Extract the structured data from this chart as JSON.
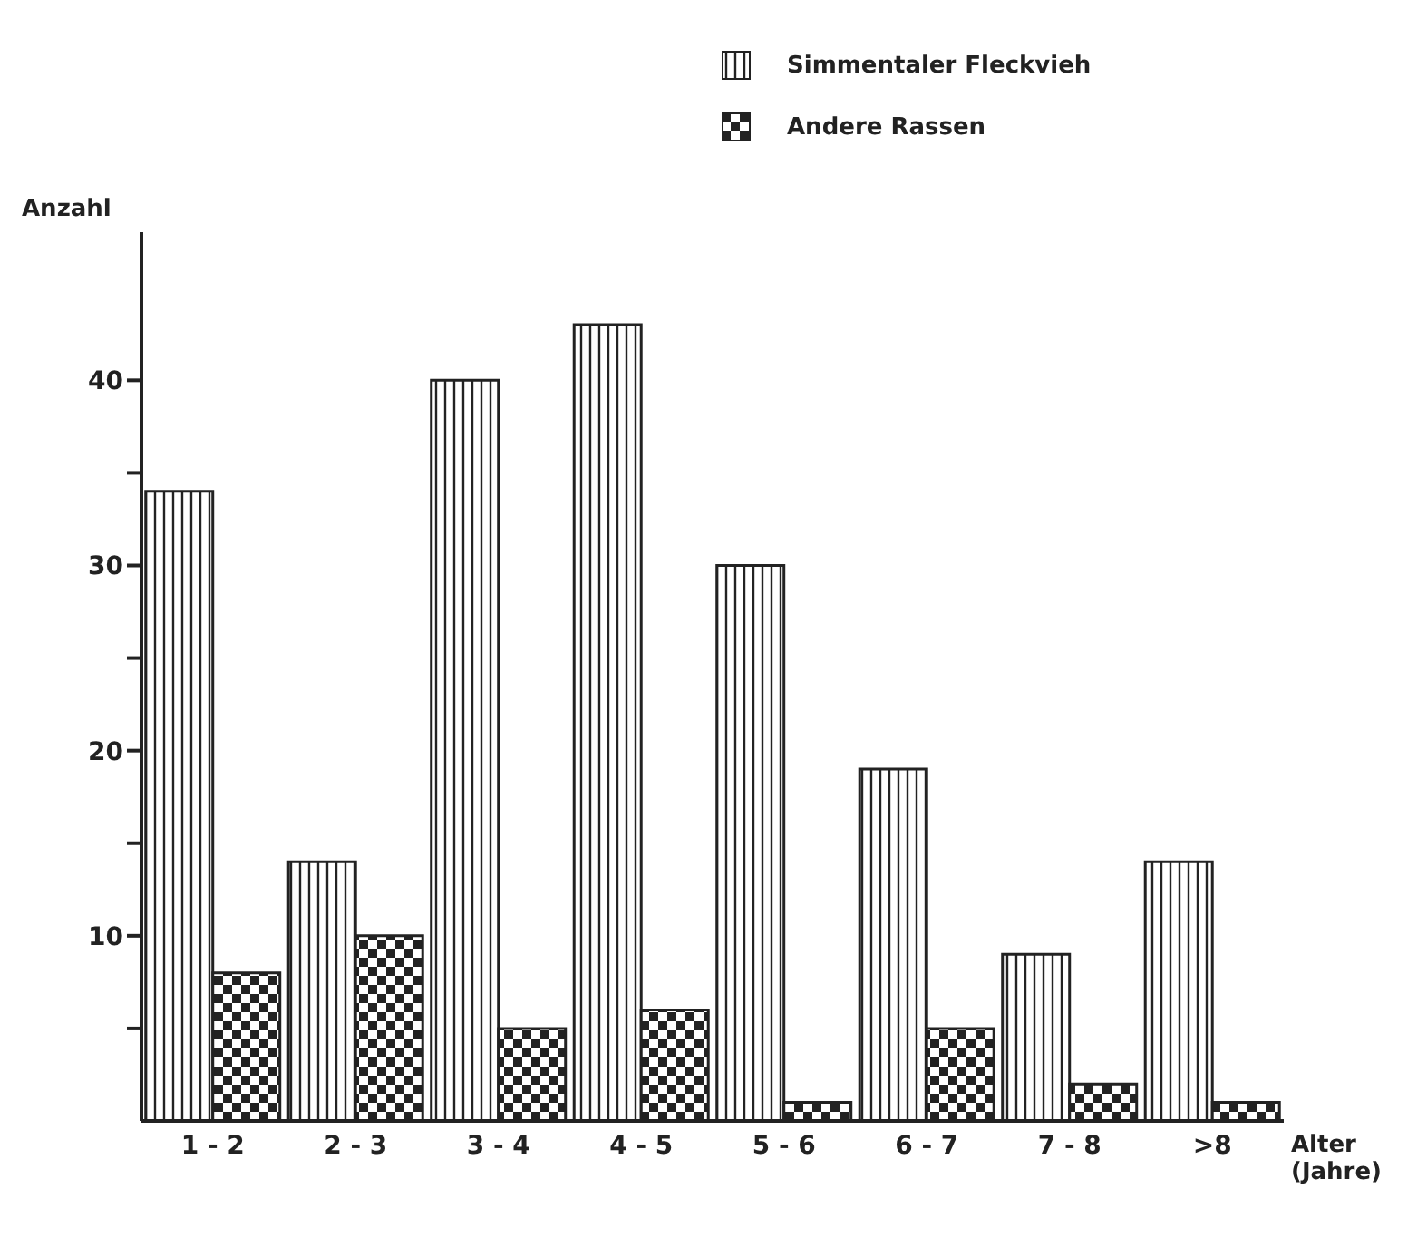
{
  "chart_data": {
    "type": "bar",
    "xlabel": "Alter (Jahre)",
    "ylabel": "Anzahl",
    "categories": [
      "1 - 2",
      "2 - 3",
      "3 - 4",
      "4 - 5",
      "5 - 6",
      "6 - 7",
      "7 - 8",
      ">8"
    ],
    "series": [
      {
        "name": "Simmentaler Fleckvieh",
        "color": "#222222",
        "values": [
          34,
          14,
          40,
          43,
          30,
          19,
          9,
          14
        ]
      },
      {
        "name": "Andere Rassen",
        "color": "#222222",
        "values": [
          8,
          10,
          5,
          6,
          1,
          5,
          2,
          1
        ]
      }
    ],
    "ylim": [
      0,
      48
    ],
    "yticks": [
      {
        "value": 5,
        "label": null
      },
      10,
      {
        "value": 15,
        "label": null
      },
      20,
      {
        "value": 25,
        "label": null
      },
      30,
      {
        "value": 35,
        "label": null
      },
      40
    ],
    "grid": false,
    "legend": "top right"
  }
}
